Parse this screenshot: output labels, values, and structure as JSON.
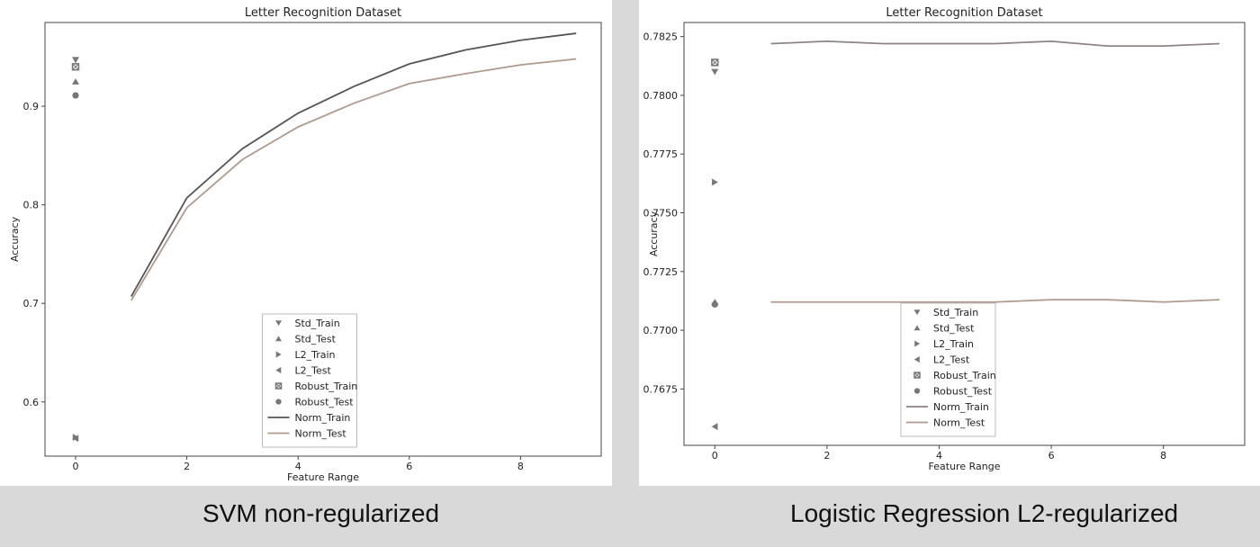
{
  "captions": {
    "left": "SVM non-regularized",
    "right": "Logistic Regression L2-regularized"
  },
  "chart_data": [
    {
      "type": "line",
      "title": "Letter Recognition Dataset",
      "xlabel": "Feature Range",
      "ylabel": "Accuracy",
      "xlim": [
        -0.55,
        9.45
      ],
      "ylim": [
        0.545,
        0.985
      ],
      "xticks": [
        0,
        2,
        4,
        6,
        8
      ],
      "yticks": [
        0.6,
        0.7,
        0.8,
        0.9
      ],
      "ytick_labels": [
        "0.6",
        "0.7",
        "0.8",
        "0.9"
      ],
      "legend_position": "lower center",
      "colors": {
        "Norm_Train": "#555555",
        "Norm_Test": "#b09a90",
        "marker": "#777777"
      },
      "series": [
        {
          "name": "Std_Train",
          "kind": "marker",
          "marker": "triangle-down",
          "x": [
            0
          ],
          "y": [
            0.947
          ]
        },
        {
          "name": "Std_Test",
          "kind": "marker",
          "marker": "triangle-up",
          "x": [
            0
          ],
          "y": [
            0.925
          ]
        },
        {
          "name": "L2_Train",
          "kind": "marker",
          "marker": "triangle-right",
          "x": [
            0
          ],
          "y": [
            0.564
          ]
        },
        {
          "name": "L2_Test",
          "kind": "marker",
          "marker": "triangle-left",
          "x": [
            0
          ],
          "y": [
            0.563
          ]
        },
        {
          "name": "Robust_Train",
          "kind": "marker",
          "marker": "square",
          "x": [
            0
          ],
          "y": [
            0.94
          ]
        },
        {
          "name": "Robust_Test",
          "kind": "marker",
          "marker": "circle",
          "x": [
            0
          ],
          "y": [
            0.911
          ]
        },
        {
          "name": "Norm_Train",
          "kind": "line",
          "x": [
            1,
            2,
            3,
            4,
            5,
            6,
            7,
            8,
            9
          ],
          "y": [
            0.707,
            0.807,
            0.857,
            0.893,
            0.92,
            0.943,
            0.957,
            0.967,
            0.974
          ]
        },
        {
          "name": "Norm_Test",
          "kind": "line",
          "x": [
            1,
            2,
            3,
            4,
            5,
            6,
            7,
            8,
            9
          ],
          "y": [
            0.703,
            0.797,
            0.846,
            0.879,
            0.903,
            0.923,
            0.933,
            0.942,
            0.948
          ]
        }
      ]
    },
    {
      "type": "line",
      "title": "Letter Recognition Dataset",
      "xlabel": "Feature Range",
      "ylabel": "Accuracy",
      "xlim": [
        -0.55,
        9.45
      ],
      "ylim": [
        0.7651,
        0.7831
      ],
      "xticks": [
        0,
        2,
        4,
        6,
        8
      ],
      "yticks": [
        0.7675,
        0.77,
        0.7725,
        0.775,
        0.7775,
        0.78,
        0.7825
      ],
      "ytick_labels": [
        "0.7675",
        "0.7700",
        "0.7725",
        "0.7750",
        "0.7775",
        "0.7800",
        "0.7825"
      ],
      "legend_position": "lower center",
      "colors": {
        "Norm_Train": "#8f8383",
        "Norm_Test": "#b09a90",
        "marker": "#777777"
      },
      "series": [
        {
          "name": "Std_Train",
          "kind": "marker",
          "marker": "triangle-down",
          "x": [
            0
          ],
          "y": [
            0.781
          ]
        },
        {
          "name": "Std_Test",
          "kind": "marker",
          "marker": "triangle-up",
          "x": [
            0
          ],
          "y": [
            0.7712
          ]
        },
        {
          "name": "L2_Train",
          "kind": "marker",
          "marker": "triangle-right",
          "x": [
            0
          ],
          "y": [
            0.7763
          ]
        },
        {
          "name": "L2_Test",
          "kind": "marker",
          "marker": "triangle-left",
          "x": [
            0
          ],
          "y": [
            0.7659
          ]
        },
        {
          "name": "Robust_Train",
          "kind": "marker",
          "marker": "square",
          "x": [
            0
          ],
          "y": [
            0.7814
          ]
        },
        {
          "name": "Robust_Test",
          "kind": "marker",
          "marker": "circle",
          "x": [
            0
          ],
          "y": [
            0.7711
          ]
        },
        {
          "name": "Norm_Train",
          "kind": "line",
          "x": [
            1,
            2,
            3,
            4,
            5,
            6,
            7,
            8,
            9
          ],
          "y": [
            0.7822,
            0.7823,
            0.7822,
            0.7822,
            0.7822,
            0.7823,
            0.7821,
            0.7821,
            0.7822
          ]
        },
        {
          "name": "Norm_Test",
          "kind": "line",
          "x": [
            1,
            2,
            3,
            4,
            5,
            6,
            7,
            8,
            9
          ],
          "y": [
            0.7712,
            0.7712,
            0.7712,
            0.7712,
            0.7712,
            0.7713,
            0.7713,
            0.7712,
            0.7713
          ]
        }
      ]
    }
  ]
}
